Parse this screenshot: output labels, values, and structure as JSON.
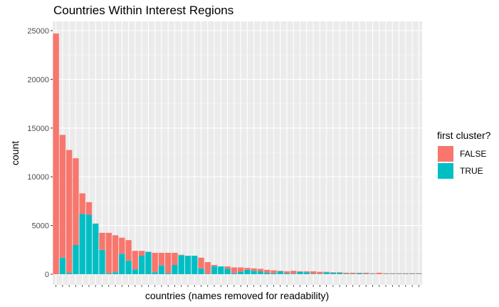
{
  "chart_data": {
    "type": "bar",
    "stacked": true,
    "title": "Countries Within Interest Regions",
    "xlabel": "countries (names removed for readability)",
    "ylabel": "count",
    "ylim": [
      0,
      26000
    ],
    "yticks": [
      0,
      5000,
      10000,
      15000,
      20000,
      25000
    ],
    "ytick_labels": [
      "0",
      "5000",
      "10000",
      "15000",
      "20000",
      "25000"
    ],
    "grid": true,
    "legend": {
      "title": "first cluster?",
      "position": "right",
      "entries": [
        {
          "label": "FALSE",
          "color": "#F8766D"
        },
        {
          "label": "TRUE",
          "color": "#00BFC4"
        }
      ]
    },
    "series": [
      {
        "name": "TRUE",
        "color": "#00BFC4",
        "values": [
          0,
          1700,
          150,
          3000,
          6200,
          6100,
          5200,
          2500,
          100,
          200,
          2100,
          1400,
          500,
          1900,
          2300,
          200,
          900,
          100,
          950,
          1950,
          1900,
          1900,
          600,
          50,
          800,
          800,
          550,
          100,
          250,
          450,
          350,
          300,
          150,
          100,
          300,
          100,
          50,
          250,
          200,
          50,
          50,
          200,
          150,
          150,
          50,
          50,
          100,
          50,
          50,
          0,
          50,
          50,
          50,
          50,
          50,
          50
        ]
      },
      {
        "name": "FALSE",
        "color": "#F8766D",
        "values": [
          24700,
          12600,
          12600,
          8900,
          2100,
          1300,
          0,
          1750,
          4150,
          3800,
          1650,
          2100,
          1900,
          500,
          0,
          2000,
          1300,
          2100,
          1250,
          50,
          0,
          0,
          1100,
          1200,
          150,
          0,
          250,
          600,
          450,
          200,
          250,
          250,
          300,
          300,
          50,
          200,
          300,
          50,
          100,
          250,
          200,
          50,
          50,
          50,
          100,
          100,
          50,
          100,
          50,
          150,
          50,
          50,
          50,
          50,
          50,
          50
        ]
      }
    ]
  }
}
